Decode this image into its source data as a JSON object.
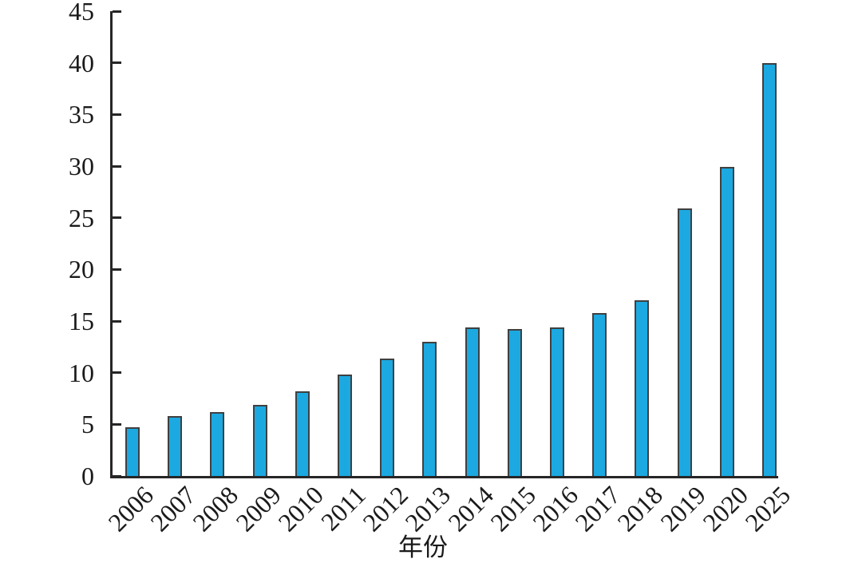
{
  "chart_data": {
    "type": "bar",
    "title": "",
    "categories": [
      "2006",
      "2007",
      "2008",
      "2009",
      "2010",
      "2011",
      "2012",
      "2013",
      "2014",
      "2015",
      "2016",
      "2017",
      "2018",
      "2019",
      "2020",
      "2025"
    ],
    "values": [
      4.7,
      5.8,
      6.2,
      6.9,
      8.2,
      9.8,
      11.4,
      13.0,
      14.4,
      14.2,
      14.4,
      15.8,
      17.0,
      25.9,
      29.9,
      40.0
    ],
    "xlabel": "年份",
    "ylabel": "",
    "ylim": [
      0,
      45
    ],
    "y_ticks": [
      0,
      5,
      10,
      15,
      20,
      25,
      30,
      35,
      40,
      45
    ],
    "grid": false,
    "legend_position": "none",
    "bar_color": "#1CA9E1",
    "bar_border_color": "#404040",
    "axis_color": "#262626",
    "text_color": "#1a1a1a",
    "background_color": "#ffffff"
  }
}
